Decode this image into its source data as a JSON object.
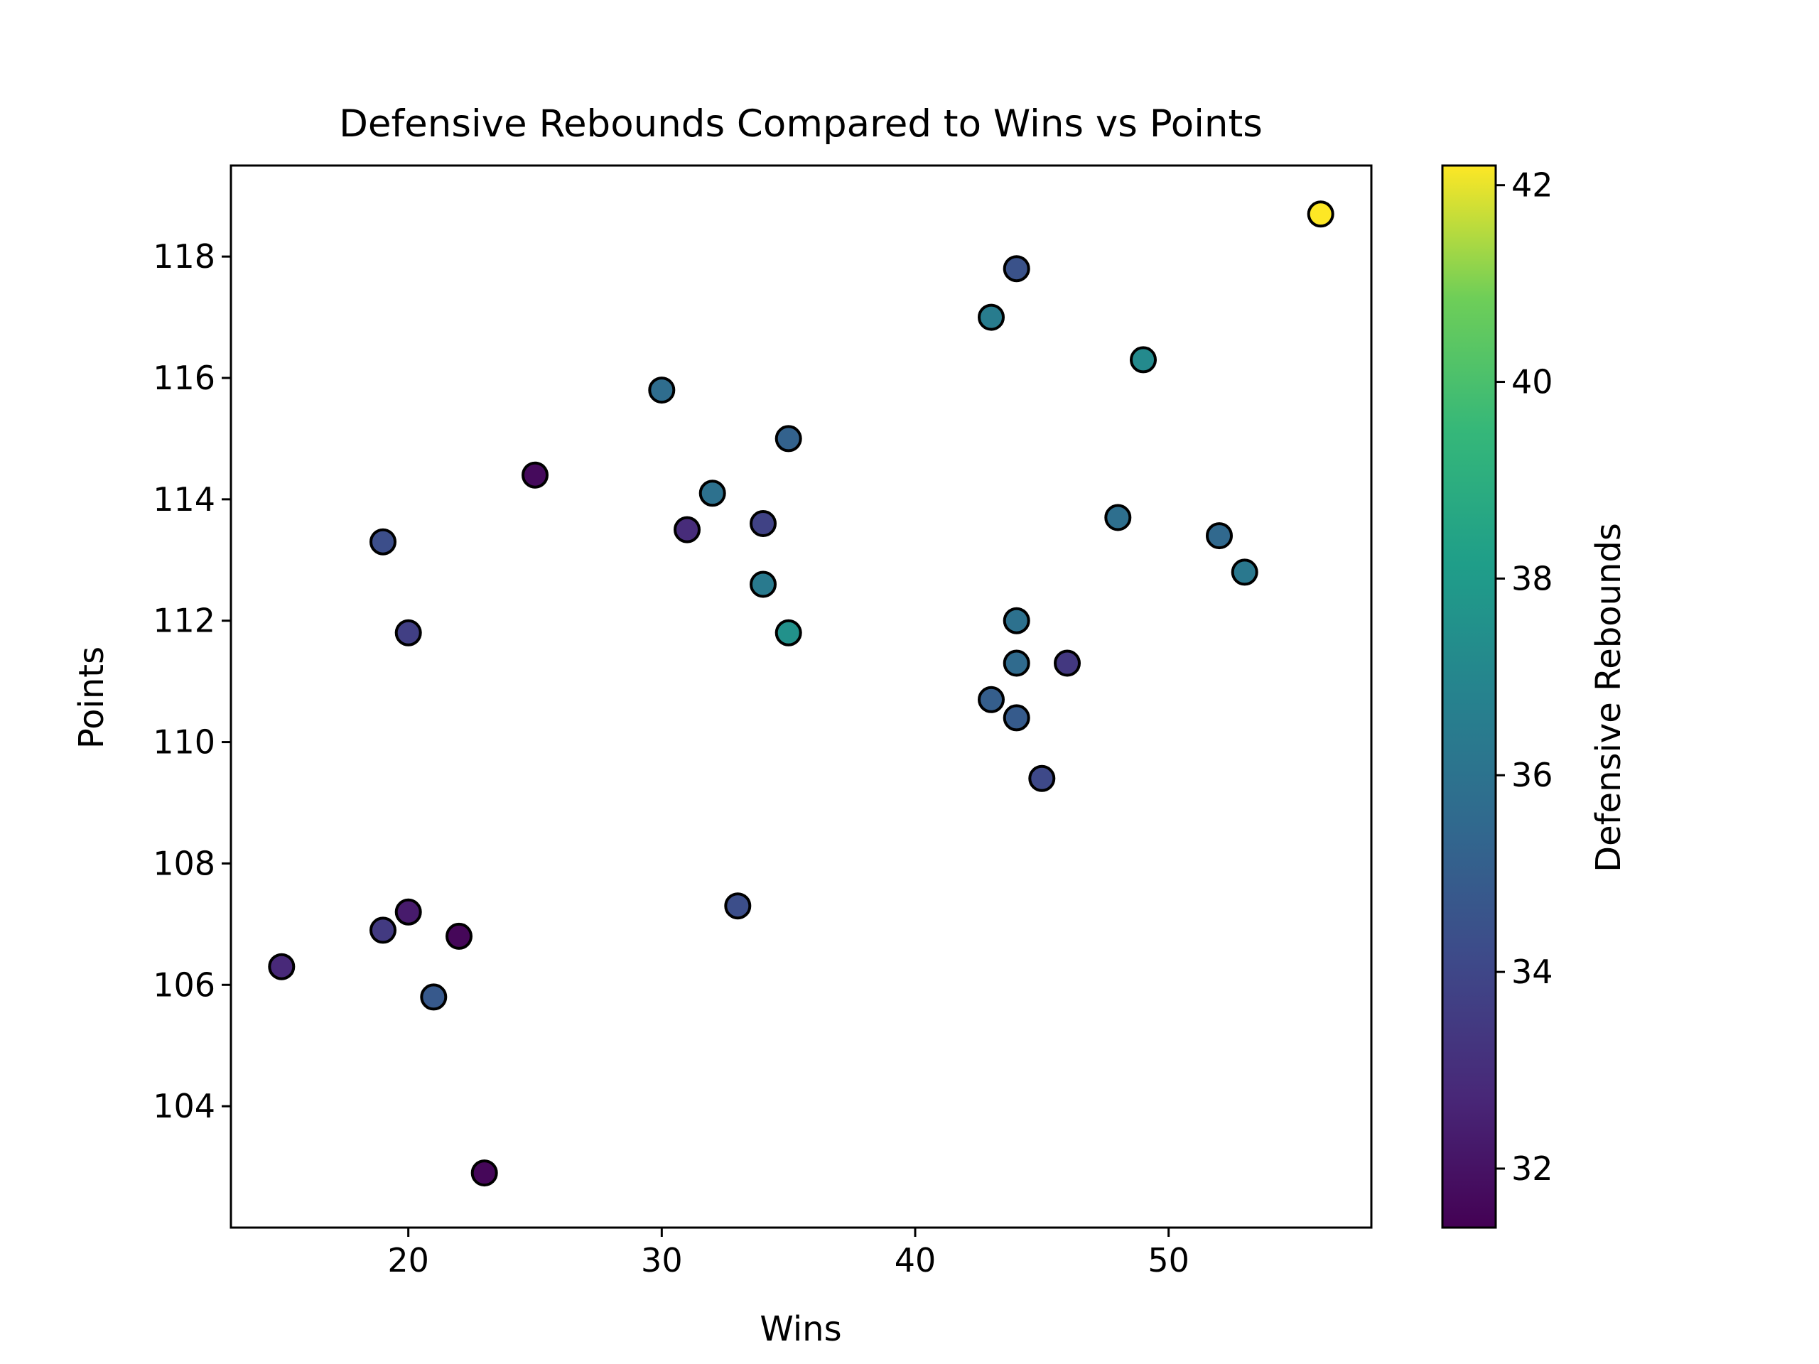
{
  "chart_data": {
    "type": "scatter",
    "title": "Defensive Rebounds Compared to Wins vs Points",
    "xlabel": "Wins",
    "ylabel": "Points",
    "xlim": [
      13,
      58
    ],
    "ylim": [
      102.0,
      119.5
    ],
    "xticks": [
      20,
      30,
      40,
      50
    ],
    "yticks": [
      104,
      106,
      108,
      110,
      112,
      114,
      116,
      118
    ],
    "colorbar": {
      "label": "Defensive Rebounds",
      "range": [
        31.4,
        42.2
      ],
      "ticks": [
        32,
        34,
        36,
        38,
        40,
        42
      ],
      "colormap": "viridis"
    },
    "grid": false,
    "marker_edge_color": "#000000",
    "points": [
      {
        "x": 56,
        "y": 118.7,
        "c": 42.2
      },
      {
        "x": 44,
        "y": 117.8,
        "c": 34.5
      },
      {
        "x": 43,
        "y": 117.0,
        "c": 36.5
      },
      {
        "x": 49,
        "y": 116.3,
        "c": 37.2
      },
      {
        "x": 30,
        "y": 115.8,
        "c": 35.7
      },
      {
        "x": 35,
        "y": 115.0,
        "c": 35.2
      },
      {
        "x": 25,
        "y": 114.4,
        "c": 31.7
      },
      {
        "x": 32,
        "y": 114.1,
        "c": 35.9
      },
      {
        "x": 34,
        "y": 113.6,
        "c": 33.8
      },
      {
        "x": 31,
        "y": 113.5,
        "c": 32.9
      },
      {
        "x": 48,
        "y": 113.7,
        "c": 35.8
      },
      {
        "x": 52,
        "y": 113.4,
        "c": 35.5
      },
      {
        "x": 19,
        "y": 113.3,
        "c": 34.3
      },
      {
        "x": 53,
        "y": 112.8,
        "c": 36.3
      },
      {
        "x": 34,
        "y": 112.6,
        "c": 36.4
      },
      {
        "x": 44,
        "y": 112.0,
        "c": 35.9
      },
      {
        "x": 20,
        "y": 111.8,
        "c": 33.7
      },
      {
        "x": 35,
        "y": 111.8,
        "c": 37.5
      },
      {
        "x": 44,
        "y": 111.3,
        "c": 35.6
      },
      {
        "x": 46,
        "y": 111.3,
        "c": 33.4
      },
      {
        "x": 43,
        "y": 110.7,
        "c": 35.0
      },
      {
        "x": 44,
        "y": 110.4,
        "c": 34.9
      },
      {
        "x": 45,
        "y": 109.4,
        "c": 34.1
      },
      {
        "x": 33,
        "y": 107.3,
        "c": 34.3
      },
      {
        "x": 20,
        "y": 107.2,
        "c": 32.3
      },
      {
        "x": 19,
        "y": 106.9,
        "c": 33.5
      },
      {
        "x": 22,
        "y": 106.8,
        "c": 31.6
      },
      {
        "x": 15,
        "y": 106.3,
        "c": 32.8
      },
      {
        "x": 21,
        "y": 105.8,
        "c": 34.8
      },
      {
        "x": 23,
        "y": 102.9,
        "c": 31.6
      }
    ]
  }
}
